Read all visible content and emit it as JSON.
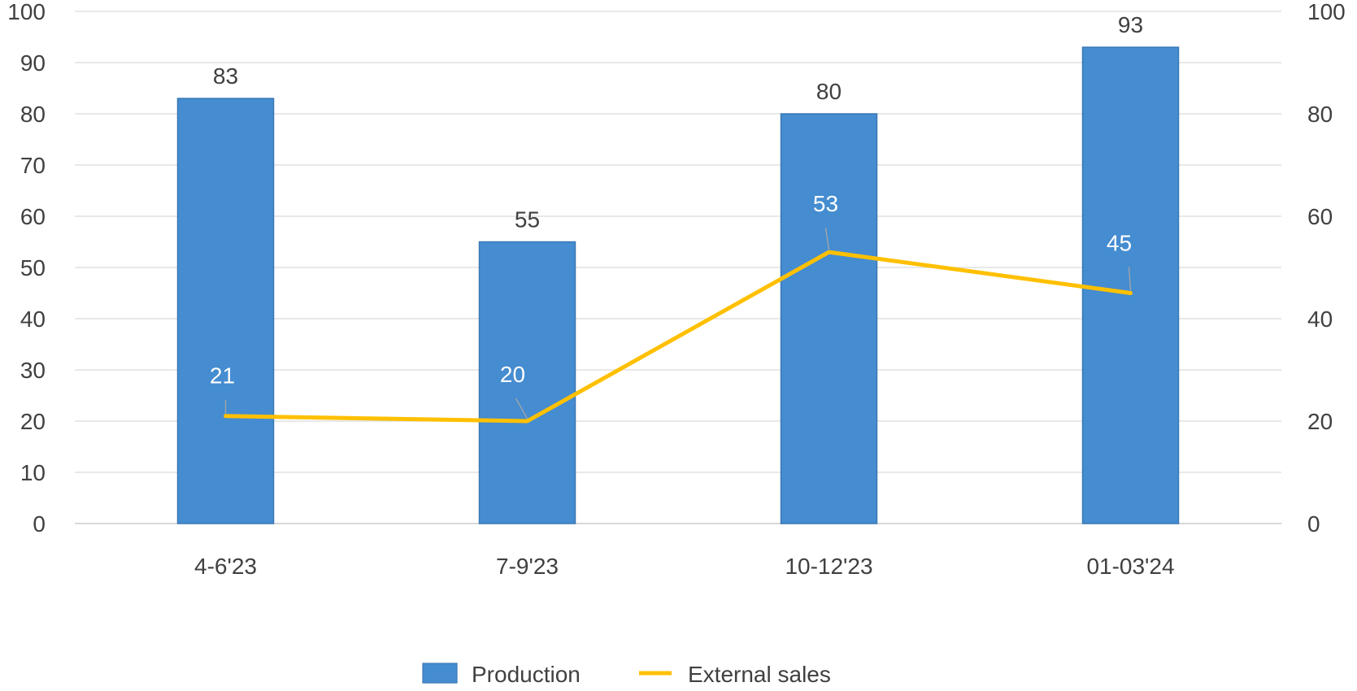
{
  "chart_data": {
    "type": "bar",
    "title": "",
    "categories": [
      "4-6'23",
      "7-9'23",
      "10-12'23",
      "01-03'24"
    ],
    "series": [
      {
        "name": "Production",
        "type": "bar",
        "axis": "left",
        "color": "#458CD0",
        "values": [
          83,
          55,
          80,
          93
        ]
      },
      {
        "name": "External sales",
        "type": "line",
        "axis": "right",
        "color": "#FFC000",
        "values": [
          21,
          20,
          53,
          45
        ]
      }
    ],
    "left_axis": {
      "ylim": [
        0,
        100
      ],
      "ticks": [
        0,
        10,
        20,
        30,
        40,
        50,
        60,
        70,
        80,
        90,
        100
      ]
    },
    "right_axis": {
      "ylim": [
        0,
        100
      ],
      "ticks": [
        0,
        20,
        40,
        60,
        80,
        100
      ]
    },
    "grid": true,
    "legend": "bottom"
  }
}
